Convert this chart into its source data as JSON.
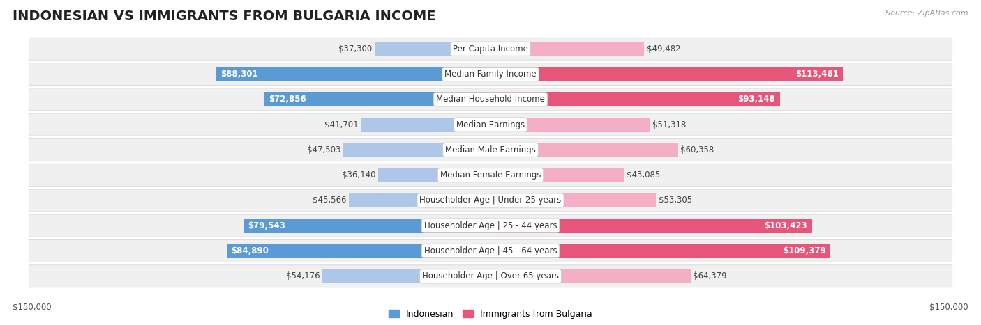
{
  "title": "INDONESIAN VS IMMIGRANTS FROM BULGARIA INCOME",
  "source": "Source: ZipAtlas.com",
  "categories": [
    "Per Capita Income",
    "Median Family Income",
    "Median Household Income",
    "Median Earnings",
    "Median Male Earnings",
    "Median Female Earnings",
    "Householder Age | Under 25 years",
    "Householder Age | 25 - 44 years",
    "Householder Age | 45 - 64 years",
    "Householder Age | Over 65 years"
  ],
  "indonesian": [
    37300,
    88301,
    72856,
    41701,
    47503,
    36140,
    45566,
    79543,
    84890,
    54176
  ],
  "bulgarian": [
    49482,
    113461,
    93148,
    51318,
    60358,
    43085,
    53305,
    103423,
    109379,
    64379
  ],
  "indonesian_labels": [
    "$37,300",
    "$88,301",
    "$72,856",
    "$41,701",
    "$47,503",
    "$36,140",
    "$45,566",
    "$79,543",
    "$84,890",
    "$54,176"
  ],
  "bulgarian_labels": [
    "$49,482",
    "$113,461",
    "$93,148",
    "$51,318",
    "$60,358",
    "$43,085",
    "$53,305",
    "$103,423",
    "$109,379",
    "$64,379"
  ],
  "indonesian_large": [
    false,
    true,
    true,
    false,
    false,
    false,
    false,
    true,
    true,
    false
  ],
  "bulgarian_large": [
    false,
    true,
    true,
    false,
    false,
    false,
    false,
    true,
    true,
    false
  ],
  "max_val": 150000,
  "color_indonesian_dark": "#5b9bd5",
  "color_indonesian_light": "#aec7e8",
  "color_bulgarian_dark": "#e8557a",
  "color_bulgarian_light": "#f4afc4",
  "bar_height": 0.58,
  "row_bg": "#f0f0f0",
  "row_border": "#dddddd",
  "legend_indonesian": "Indonesian",
  "legend_bulgarian": "Immigrants from Bulgaria",
  "xlabel_left": "$150,000",
  "xlabel_right": "$150,000",
  "title_fontsize": 14,
  "label_fontsize": 8.5,
  "value_fontsize": 8.5
}
